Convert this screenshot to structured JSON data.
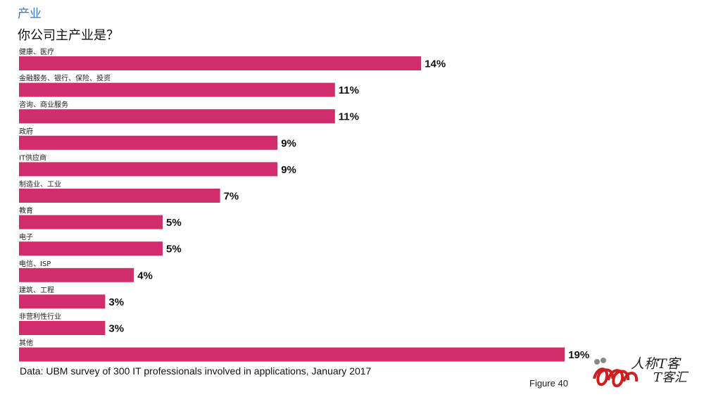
{
  "header": {
    "section_title": "产业",
    "question": "你公司主产业是？"
  },
  "chart_data": {
    "type": "bar",
    "orientation": "horizontal",
    "title": "你公司主产业是？",
    "categories": [
      "健康、医疗",
      "金融服务、银行、保险、投资",
      "咨询、商业服务",
      "政府",
      "IT供应商",
      "制造业、工业",
      "教育",
      "电子",
      "电信、ISP",
      "建筑、工程",
      "非营利性行业",
      "其他"
    ],
    "values": [
      14,
      11,
      11,
      9,
      9,
      7,
      5,
      5,
      4,
      3,
      3,
      19
    ],
    "value_labels": [
      "14%",
      "11%",
      "11%",
      "9%",
      "9%",
      "7%",
      "5%",
      "5%",
      "4%",
      "3%",
      "3%",
      "19%"
    ],
    "unit": "%",
    "xlim": [
      0,
      19
    ],
    "bar_color": "#d12c6b",
    "label_color": "#111111",
    "grid": false
  },
  "footer": {
    "source": "Data: UBM survey of 300 IT professionals involved in applications, January 2017",
    "figure": "Figure 40"
  },
  "watermark": {
    "line1": "人称T客",
    "line2": "T客汇"
  }
}
